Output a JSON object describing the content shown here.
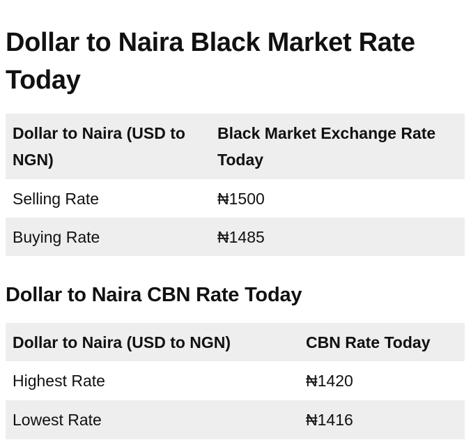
{
  "black_market": {
    "title": "Dollar to Naira Black Market Rate Today",
    "columns": [
      "Dollar to Naira (USD to NGN)",
      "Black Market Exchange Rate Today"
    ],
    "rows": [
      {
        "label": "Selling Rate",
        "value": "₦1500"
      },
      {
        "label": "Buying Rate",
        "value": "₦1485"
      }
    ]
  },
  "cbn": {
    "title": "Dollar to Naira CBN Rate Today",
    "columns": [
      "Dollar to Naira (USD to NGN)",
      "CBN Rate Today"
    ],
    "rows": [
      {
        "label": "Highest Rate",
        "value": "₦1420"
      },
      {
        "label": "Lowest Rate",
        "value": "₦1416"
      }
    ]
  },
  "colors": {
    "shaded_row": "#eeeeee",
    "text": "#111111"
  }
}
